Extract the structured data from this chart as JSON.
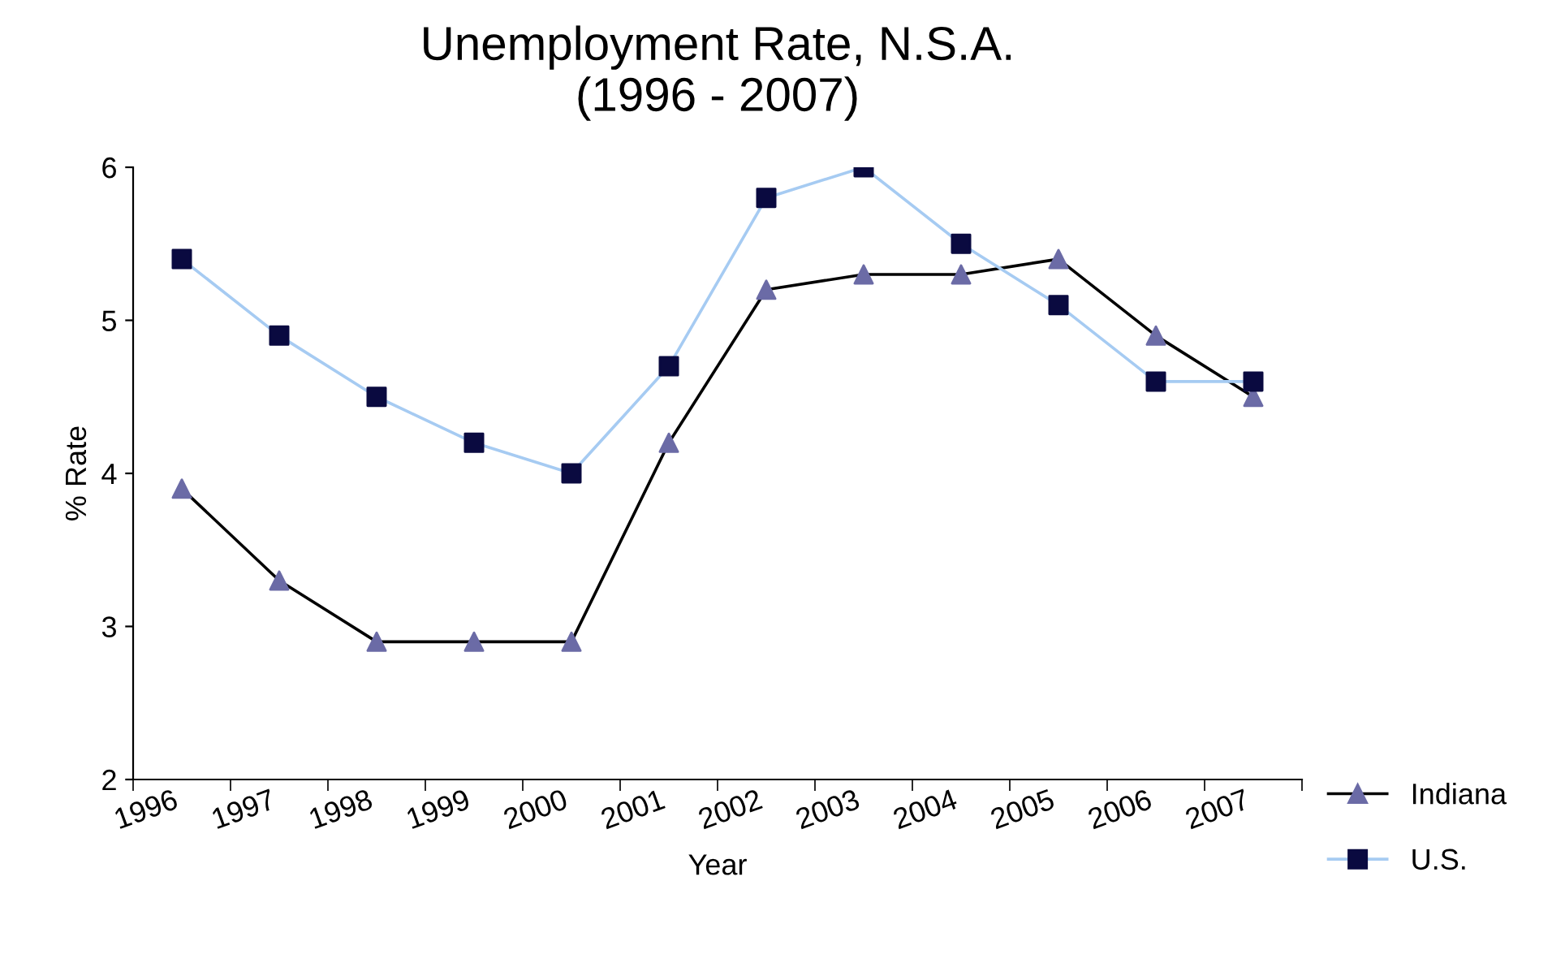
{
  "chart_data": {
    "type": "line",
    "title": "Unemployment Rate, N.S.A.\n(1996 - 2007)",
    "xlabel": "Year",
    "ylabel": "% Rate",
    "categories": [
      "1996",
      "1997",
      "1998",
      "1999",
      "2000",
      "2001",
      "2002",
      "2003",
      "2004",
      "2005",
      "2006",
      "2007"
    ],
    "series": [
      {
        "name": "Indiana",
        "color": "#000000",
        "colors": [
          "#6b6ba6",
          "#6b6ba6",
          "#6b6ba6",
          "#6b6ba6",
          "#6b6ba6",
          "#6b6ba6",
          "#6b6ba6",
          "#6b6ba6",
          "#6b6ba6",
          "#6b6ba6",
          "#6b6ba6",
          "#6b6ba6"
        ],
        "marker": "triangle",
        "values": [
          3.9,
          3.3,
          2.9,
          2.9,
          2.9,
          4.2,
          5.2,
          5.3,
          5.3,
          5.4,
          4.9,
          4.5
        ]
      },
      {
        "name": "U.S.",
        "color": "#a6cbf2",
        "colors": [
          "#0a0a40",
          "#0a0a40",
          "#0a0a40",
          "#0a0a40",
          "#0a0a40",
          "#0a0a40",
          "#0a0a40",
          "#0a0a40",
          "#0a0a40",
          "#0a0a40",
          "#0a0a40",
          "#0a0a40"
        ],
        "marker": "square",
        "values": [
          5.4,
          4.9,
          4.5,
          4.2,
          4.0,
          4.7,
          5.8,
          6.0,
          5.5,
          5.1,
          4.6,
          4.6
        ]
      }
    ],
    "ylim": [
      2,
      6
    ],
    "yticks": [
      2,
      3,
      4,
      5,
      6
    ],
    "grid": false,
    "legend": "right",
    "line_style": "solid"
  }
}
